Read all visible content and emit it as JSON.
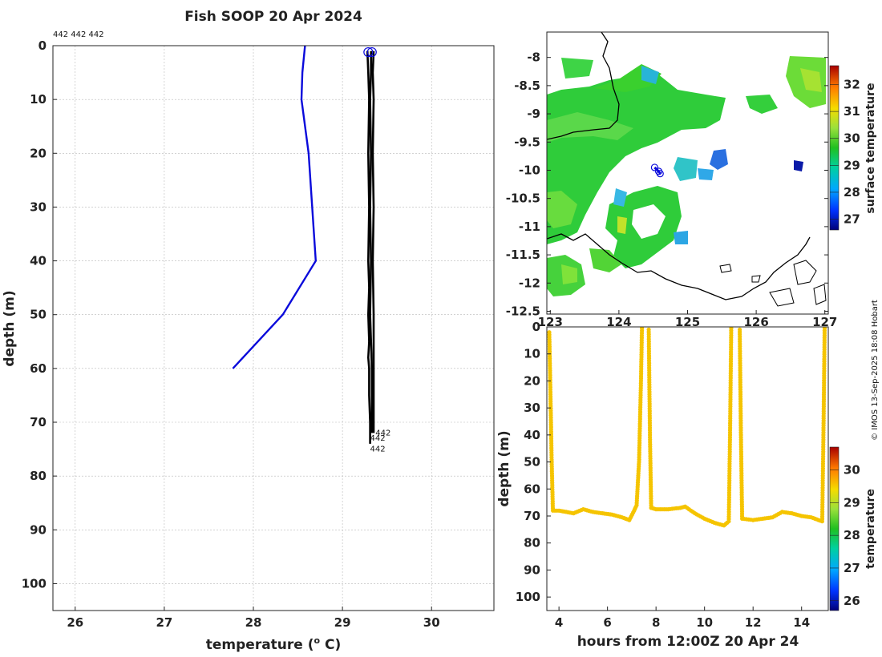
{
  "title": "Fish SOOP 20 Apr 2024",
  "credit": "© IMOS 13-Sep-2025 18:08 Hobart",
  "profile_ids_label": "442 442 442",
  "colors": {
    "profile_blue": "#0a0adb",
    "profile_black": "#000000",
    "track_yellow": "#f5c400",
    "coast": "#000000"
  },
  "chart_data": [
    {
      "id": "profiles",
      "type": "line",
      "title": "Fish SOOP 20 Apr 2024",
      "xlabel": "temperature (",
      "xlabel_sup": "o",
      "xlabel_tail": " C)",
      "ylabel": "depth (m)",
      "xlim": [
        25.75,
        30.7
      ],
      "ylim": [
        105,
        0
      ],
      "xticks": [
        26,
        27,
        28,
        29,
        30
      ],
      "yticks": [
        0,
        10,
        20,
        30,
        40,
        50,
        60,
        70,
        80,
        90,
        100
      ],
      "grid": true,
      "series": [
        {
          "name": "blue-profile",
          "color": "#0a0adb",
          "temperature": [
            28.58,
            28.55,
            28.54,
            28.62,
            28.7,
            28.33,
            27.77
          ],
          "depth": [
            0,
            5,
            10,
            20,
            40,
            50,
            60
          ]
        },
        {
          "name": "442",
          "color": "#000000",
          "temperature": [
            29.28,
            29.29,
            29.3,
            29.29,
            29.3,
            29.29,
            29.3,
            29.29,
            29.3,
            29.29,
            29.3,
            29.3,
            29.31,
            29.31
          ],
          "depth": [
            1,
            5,
            10,
            20,
            30,
            40,
            45,
            50,
            55,
            58,
            60,
            65,
            70,
            74
          ]
        },
        {
          "name": "442",
          "color": "#000000",
          "temperature": [
            29.32,
            29.32,
            29.31,
            29.32,
            29.31,
            29.32,
            29.31,
            29.32,
            29.33,
            29.33,
            29.33,
            29.33
          ],
          "depth": [
            1,
            5,
            10,
            20,
            30,
            40,
            50,
            55,
            60,
            65,
            70,
            72
          ]
        },
        {
          "name": "442",
          "color": "#000000",
          "temperature": [
            29.35,
            29.34,
            29.35,
            29.34,
            29.35,
            29.34,
            29.35,
            29.35,
            29.35,
            29.35,
            29.35
          ],
          "depth": [
            1,
            5,
            10,
            20,
            30,
            40,
            50,
            60,
            65,
            70,
            72
          ]
        }
      ],
      "start_markers": [
        {
          "temperature": 29.29,
          "depth": 1.2
        },
        {
          "temperature": 29.33,
          "depth": 1.2
        }
      ],
      "end_labels": [
        {
          "text": "442",
          "temperature": 29.37,
          "depth": 72
        },
        {
          "text": "442",
          "temperature": 29.31,
          "depth": 73
        },
        {
          "text": "442",
          "temperature": 29.31,
          "depth": 75
        }
      ]
    },
    {
      "id": "map",
      "type": "heatmap",
      "colorbar_label": "surface temperature",
      "xlim": [
        122.95,
        127.05
      ],
      "ylim": [
        -12.55,
        -7.55
      ],
      "xticks": [
        123,
        124,
        125,
        126,
        127
      ],
      "xtick_labels": [
        "123",
        "124",
        "125",
        "126",
        "127"
      ],
      "yticks": [
        -8,
        -8.5,
        -9,
        -9.5,
        -10,
        -10.5,
        -11,
        -11.5,
        -12,
        -12.5
      ],
      "clim": [
        26.6,
        32.7
      ],
      "cbar_ticks": [
        27,
        28,
        29,
        30,
        31,
        32
      ],
      "vessel_track": [
        {
          "lon": 124.52,
          "lat": -9.95
        },
        {
          "lon": 124.58,
          "lat": -10.02
        },
        {
          "lon": 124.6,
          "lat": -10.06
        }
      ]
    },
    {
      "id": "track",
      "type": "scatter",
      "xlabel": "hours from 12:00Z 20 Apr 24",
      "ylabel": "depth (m)",
      "colorbar_label": "temperature",
      "xlim": [
        3.5,
        15.1
      ],
      "ylim": [
        105,
        0
      ],
      "xticks": [
        4,
        6,
        8,
        10,
        12,
        14
      ],
      "yticks": [
        0,
        10,
        20,
        30,
        40,
        50,
        60,
        70,
        80,
        90,
        100
      ],
      "clim": [
        25.7,
        30.7
      ],
      "cbar_ticks": [
        26,
        27,
        28,
        29,
        30
      ],
      "series": [
        {
          "name": "tow-1",
          "hours": [
            3.6,
            3.65,
            3.7,
            3.75,
            4.0,
            4.3,
            4.6,
            5.0,
            5.4,
            5.8,
            6.2,
            6.6,
            6.9,
            7.1,
            7.2,
            7.3,
            7.38,
            7.42
          ],
          "depth": [
            2,
            25,
            50,
            68,
            68,
            68.5,
            69,
            67.5,
            68.5,
            69,
            69.5,
            70.5,
            71.5,
            68,
            66,
            50,
            20,
            0.5
          ]
        },
        {
          "name": "tow-2",
          "hours": [
            7.7,
            7.75,
            7.8,
            8.0,
            8.5,
            9.0,
            9.2,
            9.6,
            10.0,
            10.4,
            10.8,
            11.0,
            11.05,
            11.1
          ],
          "depth": [
            1,
            40,
            67,
            67.5,
            67.5,
            67,
            66.5,
            69,
            71,
            72.5,
            73.5,
            72,
            40,
            0.5
          ]
        },
        {
          "name": "tow-3",
          "hours": [
            11.45,
            11.5,
            11.55,
            12.0,
            12.4,
            12.8,
            13.2,
            13.6,
            14.0,
            14.4,
            14.7,
            14.85,
            14.9,
            14.95
          ],
          "depth": [
            1,
            40,
            71,
            71.5,
            71,
            70.5,
            68.5,
            69,
            70,
            70.5,
            71.5,
            72,
            40,
            0.5
          ]
        }
      ]
    }
  ]
}
